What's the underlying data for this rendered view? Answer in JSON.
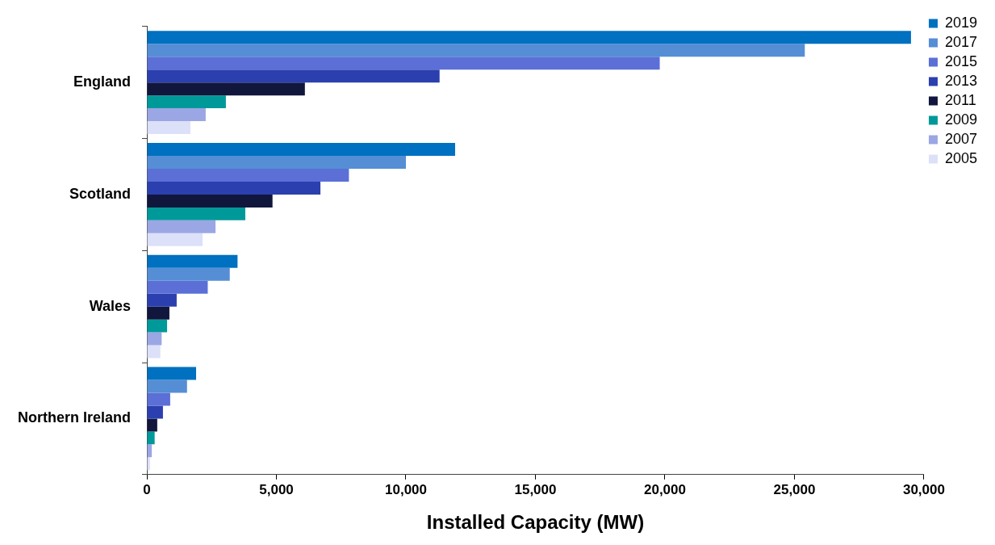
{
  "chart_data": {
    "type": "bar",
    "orientation": "horizontal",
    "xlabel": "Installed Capacity (MW)",
    "categories": [
      "England",
      "Scotland",
      "Wales",
      "Northern Ireland"
    ],
    "series": [
      {
        "name": "2019",
        "color": "#0070c0",
        "values": [
          29500,
          11900,
          3500,
          1900
        ]
      },
      {
        "name": "2017",
        "color": "#558ed5",
        "values": [
          25400,
          10000,
          3200,
          1550
        ]
      },
      {
        "name": "2015",
        "color": "#5b6fd6",
        "values": [
          19800,
          7800,
          2350,
          900
        ]
      },
      {
        "name": "2013",
        "color": "#2b3faf",
        "values": [
          11300,
          6700,
          1150,
          620
        ]
      },
      {
        "name": "2011",
        "color": "#11163d",
        "values": [
          6100,
          4850,
          870,
          400
        ]
      },
      {
        "name": "2009",
        "color": "#009999",
        "values": [
          3050,
          3800,
          780,
          300
        ]
      },
      {
        "name": "2007",
        "color": "#9ba6e4",
        "values": [
          2270,
          2650,
          570,
          190
        ]
      },
      {
        "name": "2005",
        "color": "#dce0f8",
        "values": [
          1680,
          2150,
          520,
          120
        ]
      }
    ],
    "xlim": [
      0,
      30000
    ],
    "xticks": [
      0,
      {
        "value": 5000,
        "label": "5,000"
      },
      {
        "value": 10000,
        "label": "10,000"
      },
      {
        "value": 15000,
        "label": "15,000"
      },
      {
        "value": 20000,
        "label": "20,000"
      },
      {
        "value": 25000,
        "label": "25,000"
      },
      {
        "value": 30000,
        "label": "30,000"
      }
    ],
    "grid": false,
    "legend": "top right"
  }
}
